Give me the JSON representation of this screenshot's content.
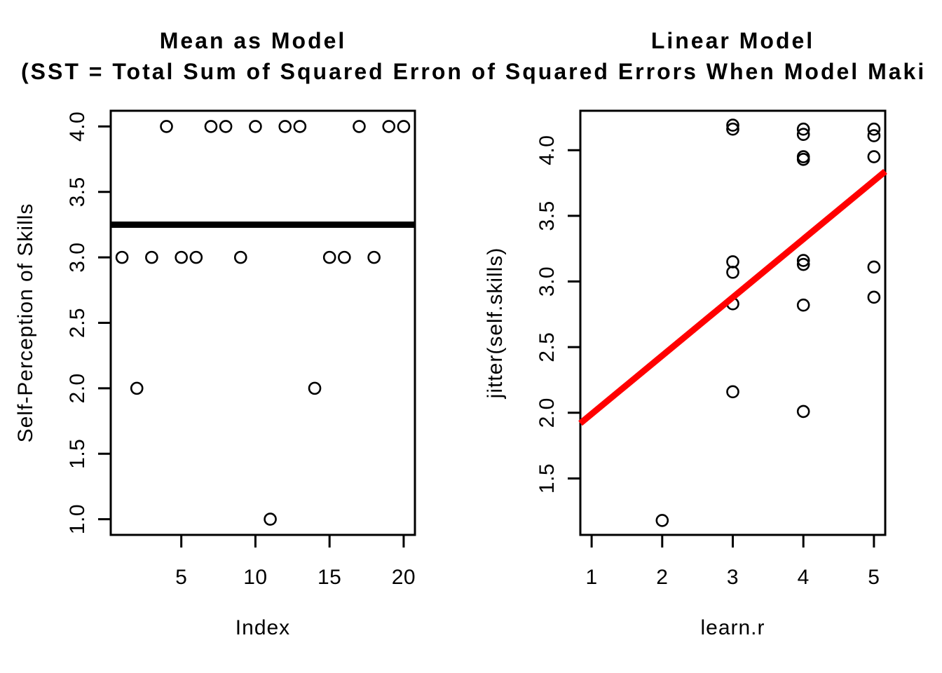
{
  "figure": {
    "background": "#ffffff",
    "subtitle": "(SST = Total Sum of Squared Erron of Squared Errors When Model Maki",
    "colors": {
      "axis": "#000000",
      "points": "#000000",
      "mean_line": "#000000",
      "regression_line": "#FF0000"
    }
  },
  "chart_data": [
    {
      "type": "scatter",
      "panel": "left",
      "title": "Mean as Model",
      "xlabel": "Index",
      "ylabel": "Self-Perception of Skills",
      "xlim": [
        0.24,
        20.76
      ],
      "ylim": [
        0.88,
        4.12
      ],
      "xticks": [
        5,
        10,
        15,
        20
      ],
      "xtick_labels": [
        "5",
        "10",
        "15",
        "20"
      ],
      "yticks": [
        1.0,
        1.5,
        2.0,
        2.5,
        3.0,
        3.5,
        4.0
      ],
      "ytick_labels": [
        "1.0",
        "1.5",
        "2.0",
        "2.5",
        "3.0",
        "3.5",
        "4.0"
      ],
      "grid": false,
      "legend": null,
      "points": [
        [
          1,
          3
        ],
        [
          2,
          2
        ],
        [
          3,
          3
        ],
        [
          4,
          4
        ],
        [
          5,
          3
        ],
        [
          6,
          3
        ],
        [
          7,
          4
        ],
        [
          8,
          4
        ],
        [
          9,
          3
        ],
        [
          10,
          4
        ],
        [
          11,
          1
        ],
        [
          12,
          4
        ],
        [
          13,
          4
        ],
        [
          14,
          2
        ],
        [
          15,
          3
        ],
        [
          16,
          3
        ],
        [
          17,
          4
        ],
        [
          18,
          3
        ],
        [
          19,
          4
        ],
        [
          20,
          4
        ]
      ],
      "mean_line": {
        "y": 3.25,
        "color": "#000000",
        "stroke_width": 9
      }
    },
    {
      "type": "scatter",
      "panel": "right",
      "title": "Linear Model",
      "xlabel": "learn.r",
      "ylabel": "jitter(self.skills)",
      "xlim": [
        0.84,
        5.16
      ],
      "ylim": [
        1.07,
        4.3
      ],
      "xticks": [
        1,
        2,
        3,
        4,
        5
      ],
      "xtick_labels": [
        "1",
        "2",
        "3",
        "4",
        "5"
      ],
      "yticks": [
        1.5,
        2.0,
        2.5,
        3.0,
        3.5,
        4.0
      ],
      "ytick_labels": [
        "1.5",
        "2.0",
        "2.5",
        "3.0",
        "3.5",
        "4.0"
      ],
      "grid": false,
      "legend": null,
      "points": [
        [
          2,
          1.18
        ],
        [
          3,
          4.19
        ],
        [
          3,
          4.16
        ],
        [
          3,
          3.15
        ],
        [
          3,
          3.07
        ],
        [
          3,
          2.83
        ],
        [
          3,
          2.16
        ],
        [
          4,
          4.16
        ],
        [
          4,
          4.12
        ],
        [
          4,
          3.95
        ],
        [
          4,
          3.93
        ],
        [
          4,
          3.16
        ],
        [
          4,
          3.13
        ],
        [
          4,
          2.82
        ],
        [
          4,
          2.01
        ],
        [
          5,
          4.16
        ],
        [
          5,
          4.11
        ],
        [
          5,
          3.95
        ],
        [
          5,
          3.11
        ],
        [
          5,
          2.88
        ]
      ],
      "regression_line": {
        "intercept": 1.547,
        "slope": 0.444,
        "color": "#FF0000",
        "stroke_width": 9
      }
    }
  ]
}
